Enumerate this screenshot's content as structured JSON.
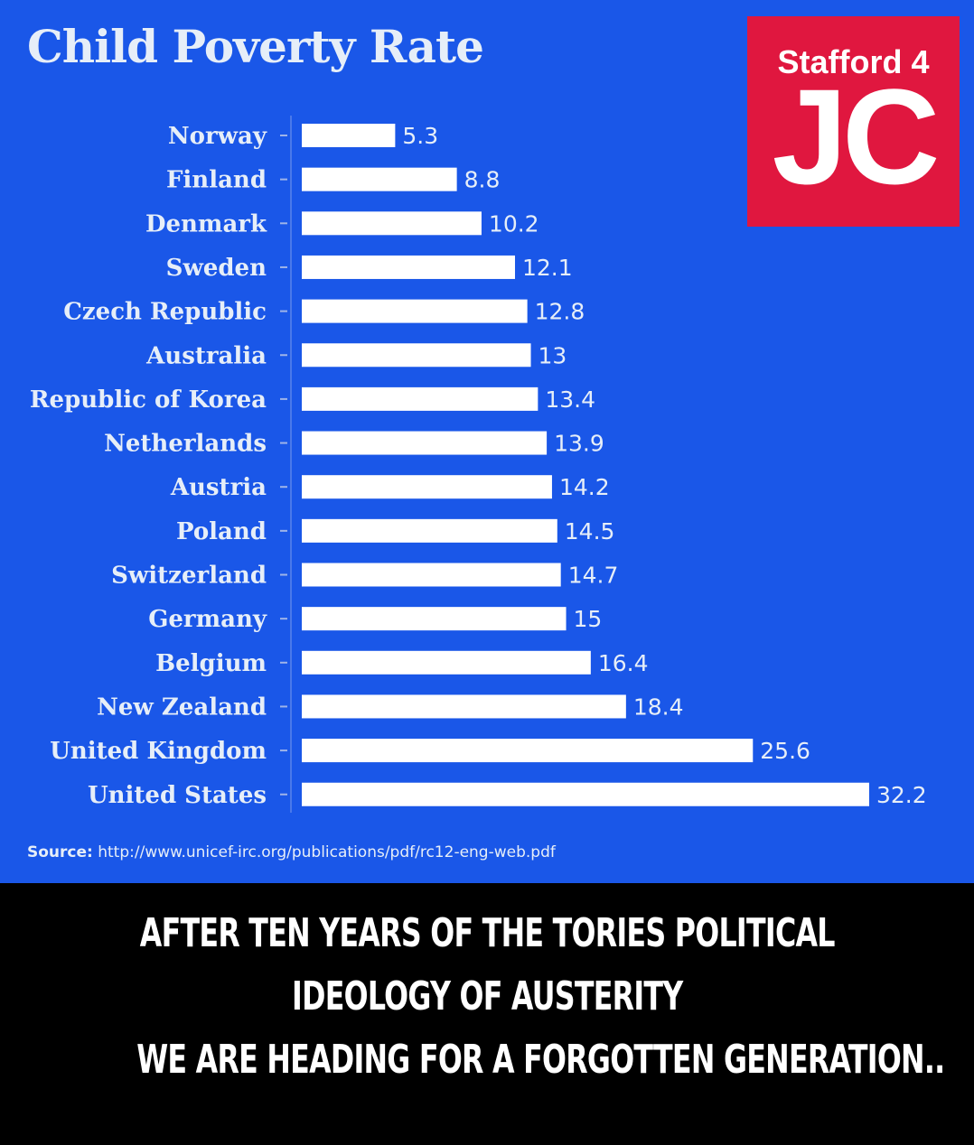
{
  "chart_data": {
    "type": "bar",
    "orientation": "horizontal",
    "title": "Child Poverty Rate",
    "categories": [
      "Norway",
      "Finland",
      "Denmark",
      "Sweden",
      "Czech Republic",
      "Australia",
      "Republic of Korea",
      "Netherlands",
      "Austria",
      "Poland",
      "Switzerland",
      "Germany",
      "Belgium",
      "New Zealand",
      "United Kingdom",
      "United States"
    ],
    "values": [
      5.3,
      8.8,
      10.2,
      12.1,
      12.8,
      13,
      13.4,
      13.9,
      14.2,
      14.5,
      14.7,
      15,
      16.4,
      18.4,
      25.6,
      32.2
    ],
    "value_labels": [
      "5.3",
      "8.8",
      "10.2",
      "12.1",
      "12.8",
      "13",
      "13.4",
      "13.9",
      "14.2",
      "14.5",
      "14.7",
      "15",
      "16.4",
      "18.4",
      "25.6",
      "32.2"
    ],
    "xlim": [
      0,
      32.2
    ],
    "grid": false,
    "legend": "none",
    "bar_color": "#ffffff",
    "background_color": "#1a57e8"
  },
  "source": {
    "label": "Source:",
    "url": "http://www.unicef-irc.org/publications/pdf/rc12-eng-web.pdf"
  },
  "logo": {
    "top_text": "Stafford 4",
    "main_text": "JC",
    "color": "#e0173f"
  },
  "caption": {
    "line1": "AFTER TEN YEARS OF THE TORIES POLITICAL",
    "line2": "IDEOLOGY OF AUSTERITY",
    "line3": "WE ARE HEADING FOR A FORGOTTEN GENERATION.."
  }
}
